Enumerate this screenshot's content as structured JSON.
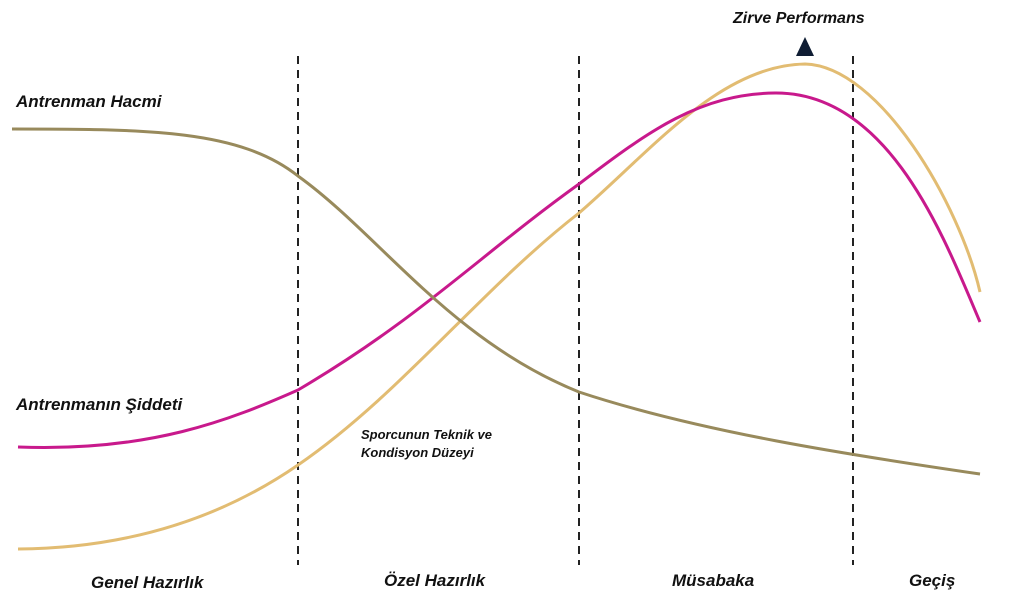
{
  "labels": {
    "peak": "Zirve Performans",
    "volume": "Antrenman Hacmi",
    "intensity": "Antrenmanın Şiddeti",
    "level_line1": "Sporcunun Teknik ve",
    "level_line2": "Kondisyon Düzeyi"
  },
  "phases": [
    "Genel Hazırlık",
    "Özel Hazırlık",
    "Müsabaka",
    "Geçiş"
  ],
  "colors": {
    "volume": "#988a5c",
    "intensity": "#c8198c",
    "level": "#e2bc72",
    "divider": "#222222",
    "peak_marker": "#0f1d33"
  },
  "icons": {
    "peak_marker": "triangle-up-icon"
  }
}
